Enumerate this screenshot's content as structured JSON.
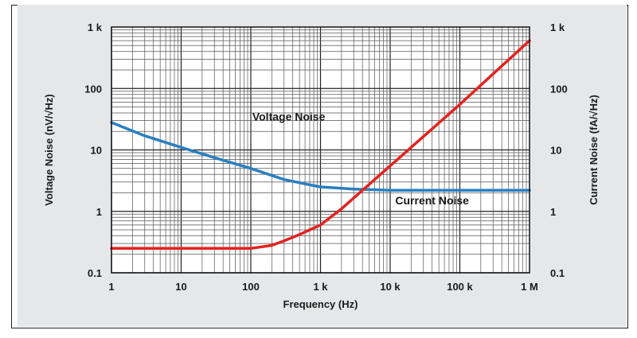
{
  "chart_data": {
    "type": "line",
    "xlabel": "Frequency (Hz)",
    "ylabel_left": "Voltage Noise (nV/√Hz)",
    "ylabel_right": "Current Noise (fA/√Hz)",
    "x_scale": "log",
    "y_scale": "log",
    "xlim": [
      1,
      1000000
    ],
    "ylim": [
      0.1,
      1000
    ],
    "x_ticks": [
      {
        "value": 1,
        "label": "1"
      },
      {
        "value": 10,
        "label": "10"
      },
      {
        "value": 100,
        "label": "100"
      },
      {
        "value": 1000,
        "label": "1 k"
      },
      {
        "value": 10000,
        "label": "10 k"
      },
      {
        "value": 100000,
        "label": "100 k"
      },
      {
        "value": 1000000,
        "label": "1 M"
      }
    ],
    "y_ticks": [
      {
        "value": 0.1,
        "label": "0.1"
      },
      {
        "value": 1,
        "label": "1"
      },
      {
        "value": 10,
        "label": "10"
      },
      {
        "value": 100,
        "label": "100"
      },
      {
        "value": 1000,
        "label": "1 k"
      }
    ],
    "grid": true,
    "series": [
      {
        "name": "Voltage Noise",
        "color": "#2a7fc1",
        "x": [
          1,
          3,
          10,
          30,
          100,
          300,
          700,
          1000,
          3000,
          10000,
          100000,
          1000000
        ],
        "y": [
          28,
          17,
          11,
          7.5,
          5,
          3.3,
          2.7,
          2.5,
          2.3,
          2.2,
          2.2,
          2.2
        ]
      },
      {
        "name": "Current Noise",
        "color": "#e3231f",
        "x": [
          1,
          10,
          100,
          200,
          300,
          500,
          1000,
          2000,
          10000,
          100000,
          1000000
        ],
        "y": [
          0.25,
          0.25,
          0.25,
          0.28,
          0.33,
          0.42,
          0.6,
          1.1,
          5.5,
          55,
          600
        ]
      }
    ],
    "annotations": [
      {
        "text": "Voltage Noise",
        "x": 350,
        "y": 30
      },
      {
        "text": "Current Noise",
        "x": 40000,
        "y": 1.3
      }
    ]
  }
}
